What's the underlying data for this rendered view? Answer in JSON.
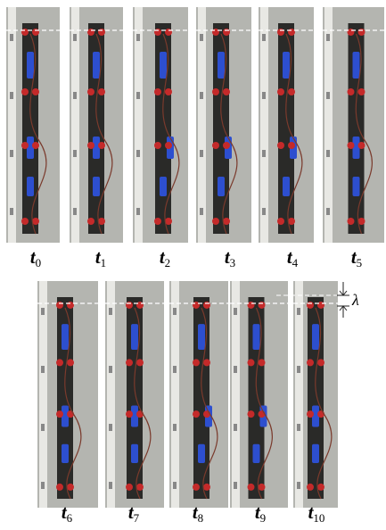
{
  "frames": [
    {
      "letter": "t",
      "index": "0"
    },
    {
      "letter": "t",
      "index": "1"
    },
    {
      "letter": "t",
      "index": "2"
    },
    {
      "letter": "t",
      "index": "3"
    },
    {
      "letter": "t",
      "index": "4"
    },
    {
      "letter": "t",
      "index": "5"
    },
    {
      "letter": "t",
      "index": "6"
    },
    {
      "letter": "t",
      "index": "7"
    },
    {
      "letter": "t",
      "index": "8"
    },
    {
      "letter": "t",
      "index": "9"
    },
    {
      "letter": "t",
      "index": "10"
    }
  ],
  "lambda_label": "λ"
}
